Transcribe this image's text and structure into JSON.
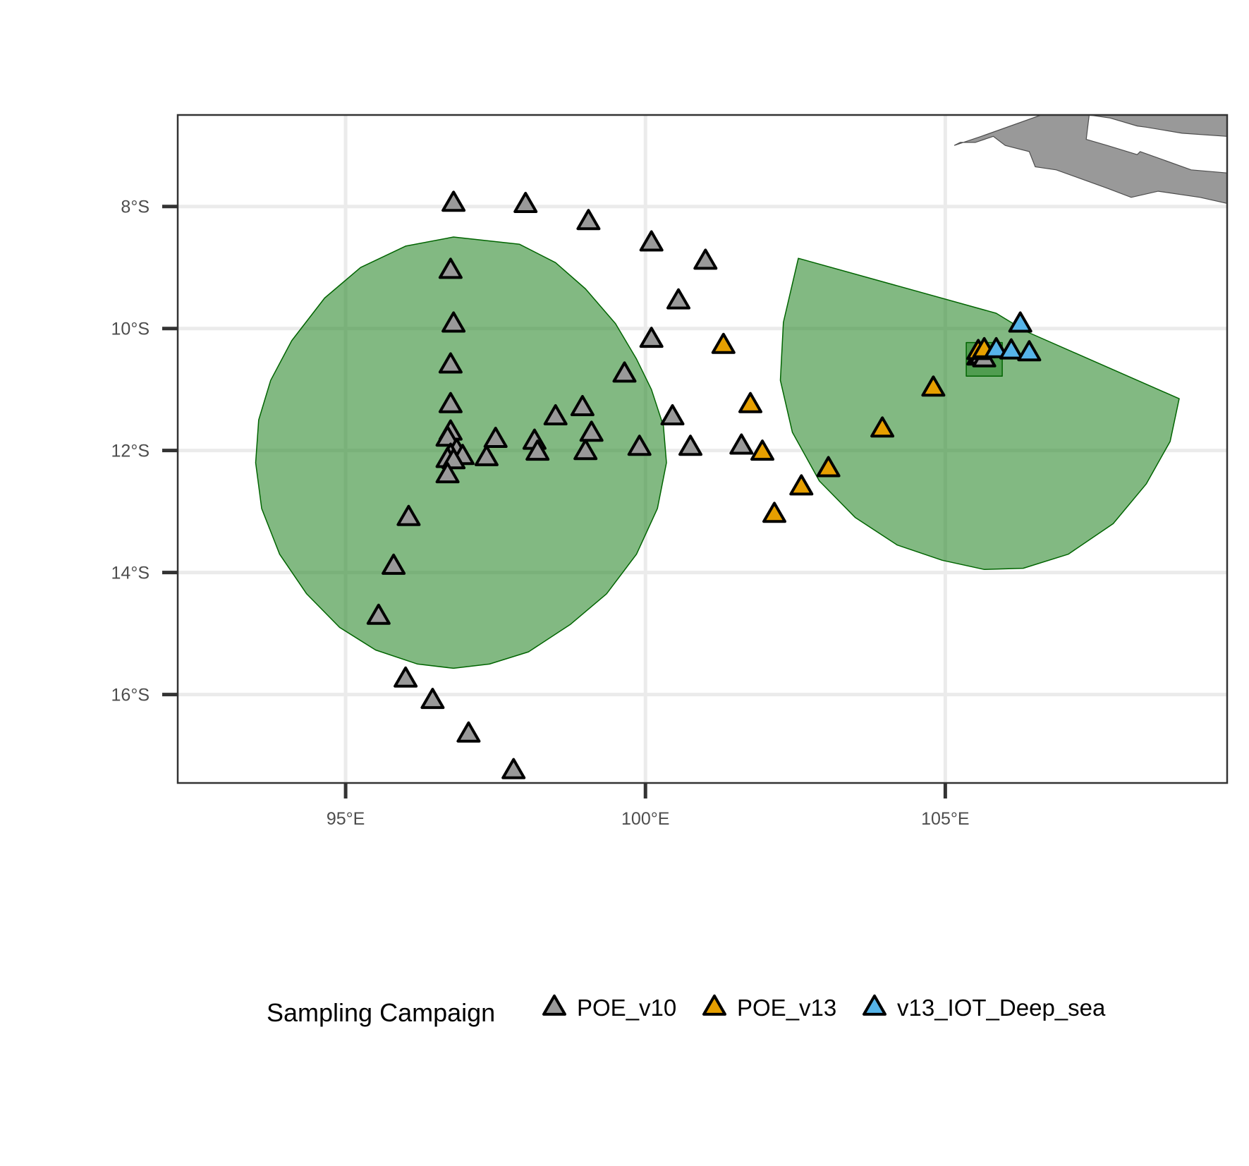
{
  "chart_data": {
    "type": "scatter",
    "title": "",
    "xlabel": "",
    "ylabel": "",
    "xlim": [
      92.2,
      109.7
    ],
    "ylim": [
      -17.45,
      -6.5
    ],
    "grid": true,
    "legend_placement": "bottom",
    "x_ticks": [
      {
        "value": 95,
        "label": "95°E"
      },
      {
        "value": 100,
        "label": "100°E"
      },
      {
        "value": 105,
        "label": "105°E"
      }
    ],
    "y_ticks": [
      {
        "value": -8,
        "label": "8°S"
      },
      {
        "value": -10,
        "label": "10°S"
      },
      {
        "value": -12,
        "label": "12°S"
      },
      {
        "value": -14,
        "label": "14°S"
      },
      {
        "value": -16,
        "label": "16°S"
      }
    ],
    "legend_title": "Sampling Campaign",
    "colors": {
      "land": "#999999",
      "protected_area_fill": "#2e8b2e",
      "protected_area_stroke": "#006400",
      "grid": "#ebebeb",
      "panel_border": "#333333"
    },
    "series": [
      {
        "name": "POE_v10",
        "color": "#999999",
        "points": [
          [
            96.8,
            -7.95
          ],
          [
            98.0,
            -7.97
          ],
          [
            99.05,
            -8.25
          ],
          [
            100.1,
            -8.6
          ],
          [
            101.0,
            -8.9
          ],
          [
            96.75,
            -9.05
          ],
          [
            100.55,
            -9.55
          ],
          [
            96.8,
            -9.93
          ],
          [
            100.1,
            -10.18
          ],
          [
            96.75,
            -10.6
          ],
          [
            99.65,
            -10.75
          ],
          [
            96.75,
            -11.25
          ],
          [
            98.95,
            -11.3
          ],
          [
            98.5,
            -11.45
          ],
          [
            100.45,
            -11.45
          ],
          [
            99.1,
            -11.72
          ],
          [
            96.75,
            -11.7
          ],
          [
            96.7,
            -11.8
          ],
          [
            97.5,
            -11.82
          ],
          [
            98.15,
            -11.85
          ],
          [
            101.6,
            -11.93
          ],
          [
            99.9,
            -11.95
          ],
          [
            100.75,
            -11.95
          ],
          [
            96.85,
            -12.0
          ],
          [
            98.2,
            -12.03
          ],
          [
            99.0,
            -12.02
          ],
          [
            96.75,
            -12.08
          ],
          [
            96.95,
            -12.1
          ],
          [
            97.35,
            -12.12
          ],
          [
            96.7,
            -12.15
          ],
          [
            96.8,
            -12.17
          ],
          [
            96.7,
            -12.4
          ],
          [
            96.05,
            -13.1
          ],
          [
            95.8,
            -13.9
          ],
          [
            95.55,
            -14.72
          ],
          [
            96.0,
            -15.75
          ],
          [
            96.45,
            -16.1
          ],
          [
            97.05,
            -16.65
          ],
          [
            97.8,
            -17.25
          ],
          [
            105.55,
            -10.47
          ],
          [
            105.6,
            -10.45
          ],
          [
            105.65,
            -10.5
          ]
        ]
      },
      {
        "name": "POE_v13",
        "color": "#e69f00",
        "points": [
          [
            101.3,
            -10.28
          ],
          [
            101.75,
            -11.25
          ],
          [
            101.95,
            -12.03
          ],
          [
            102.15,
            -13.05
          ],
          [
            102.6,
            -12.6
          ],
          [
            103.05,
            -12.3
          ],
          [
            103.95,
            -11.65
          ],
          [
            104.8,
            -10.98
          ],
          [
            105.55,
            -10.38
          ],
          [
            105.65,
            -10.35
          ]
        ]
      },
      {
        "name": "v13_IOT_Deep_sea",
        "color": "#56b4e9",
        "points": [
          [
            105.85,
            -10.35
          ],
          [
            106.1,
            -10.37
          ],
          [
            106.25,
            -9.93
          ],
          [
            106.4,
            -10.4
          ]
        ]
      }
    ],
    "protected_areas": [
      {
        "shape": "circle",
        "polygon": [
          [
            96.8,
            -8.5
          ],
          [
            97.9,
            -8.62
          ],
          [
            98.5,
            -8.92
          ],
          [
            99.0,
            -9.35
          ],
          [
            99.5,
            -9.92
          ],
          [
            99.85,
            -10.5
          ],
          [
            100.1,
            -11.0
          ],
          [
            100.3,
            -11.6
          ],
          [
            100.35,
            -12.2
          ],
          [
            100.2,
            -12.95
          ],
          [
            99.85,
            -13.7
          ],
          [
            99.35,
            -14.35
          ],
          [
            98.75,
            -14.85
          ],
          [
            98.05,
            -15.3
          ],
          [
            97.4,
            -15.5
          ],
          [
            96.8,
            -15.57
          ],
          [
            96.2,
            -15.5
          ],
          [
            95.5,
            -15.27
          ],
          [
            94.9,
            -14.9
          ],
          [
            94.35,
            -14.35
          ],
          [
            93.9,
            -13.7
          ],
          [
            93.6,
            -12.95
          ],
          [
            93.5,
            -12.2
          ],
          [
            93.55,
            -11.5
          ],
          [
            93.75,
            -10.85
          ],
          [
            94.1,
            -10.2
          ],
          [
            94.65,
            -9.5
          ],
          [
            95.25,
            -9.0
          ],
          [
            96.0,
            -8.65
          ]
        ]
      },
      {
        "shape": "sector",
        "polygon": [
          [
            102.55,
            -8.85
          ],
          [
            105.85,
            -9.75
          ],
          [
            106.35,
            -10.05
          ],
          [
            108.9,
            -11.15
          ],
          [
            108.75,
            -11.85
          ],
          [
            108.35,
            -12.55
          ],
          [
            107.8,
            -13.2
          ],
          [
            107.05,
            -13.7
          ],
          [
            106.3,
            -13.93
          ],
          [
            105.65,
            -13.95
          ],
          [
            104.95,
            -13.8
          ],
          [
            104.2,
            -13.55
          ],
          [
            103.5,
            -13.1
          ],
          [
            102.9,
            -12.5
          ],
          [
            102.45,
            -11.7
          ],
          [
            102.25,
            -10.85
          ],
          [
            102.3,
            -9.9
          ]
        ]
      },
      {
        "shape": "box",
        "polygon": [
          [
            105.35,
            -10.23
          ],
          [
            105.95,
            -10.23
          ],
          [
            105.95,
            -10.78
          ],
          [
            105.35,
            -10.78
          ]
        ]
      }
    ],
    "land": [
      {
        "polygon": [
          [
            105.15,
            -7.0
          ],
          [
            105.6,
            -6.85
          ],
          [
            106.6,
            -6.5
          ],
          [
            109.7,
            -6.5
          ],
          [
            109.7,
            -6.85
          ],
          [
            108.95,
            -6.8
          ],
          [
            108.35,
            -6.7
          ],
          [
            108.2,
            -6.68
          ],
          [
            107.75,
            -6.55
          ],
          [
            107.4,
            -6.5
          ],
          [
            107.35,
            -6.9
          ],
          [
            107.7,
            -7.0
          ],
          [
            108.2,
            -7.15
          ],
          [
            108.25,
            -7.1
          ],
          [
            109.1,
            -7.4
          ],
          [
            109.7,
            -7.45
          ],
          [
            109.7,
            -7.95
          ],
          [
            109.25,
            -7.85
          ],
          [
            108.55,
            -7.75
          ],
          [
            108.1,
            -7.85
          ],
          [
            107.7,
            -7.7
          ],
          [
            106.85,
            -7.4
          ],
          [
            106.5,
            -7.35
          ],
          [
            106.4,
            -7.1
          ],
          [
            106.0,
            -7.0
          ],
          [
            105.8,
            -6.85
          ],
          [
            105.5,
            -6.95
          ],
          [
            105.25,
            -6.95
          ]
        ]
      }
    ]
  }
}
